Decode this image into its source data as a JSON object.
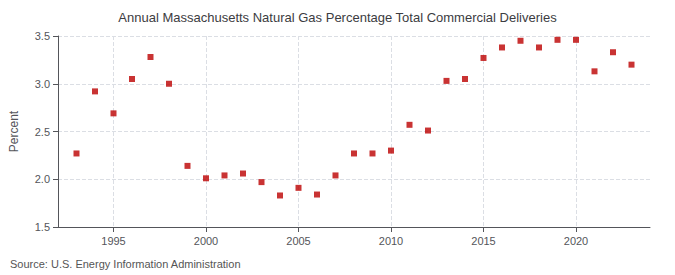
{
  "chart_data": {
    "type": "scatter",
    "title": "Annual Massachusetts Natural Gas Percentage Total Commercial Deliveries",
    "ylabel": "Percent",
    "source": "Source: U.S. Energy Information Administration",
    "x": [
      1993,
      1994,
      1995,
      1996,
      1997,
      1998,
      1999,
      2000,
      2001,
      2002,
      2003,
      2004,
      2005,
      2006,
      2007,
      2008,
      2009,
      2010,
      2011,
      2012,
      2013,
      2014,
      2015,
      2016,
      2017,
      2018,
      2019,
      2020,
      2021,
      2022,
      2023
    ],
    "values": [
      2.27,
      2.92,
      2.69,
      3.05,
      3.28,
      3.0,
      2.14,
      2.01,
      2.04,
      2.06,
      1.97,
      1.83,
      1.91,
      1.84,
      2.04,
      2.27,
      2.27,
      2.3,
      2.57,
      2.51,
      3.03,
      3.05,
      3.27,
      3.38,
      3.45,
      3.38,
      3.46,
      3.46,
      3.13,
      3.33,
      3.2
    ],
    "color": "#bb0000",
    "marker": "square",
    "xlim": [
      1992,
      2024
    ],
    "xticks": [
      1995,
      2000,
      2005,
      2010,
      2015,
      2020
    ],
    "ylim": [
      1.5,
      3.5
    ],
    "yticks": [
      1.5,
      {
        "value": 2,
        "label": "2.0"
      },
      2.5,
      {
        "value": 3,
        "label": "3.0"
      },
      3.5
    ],
    "grid": true
  }
}
